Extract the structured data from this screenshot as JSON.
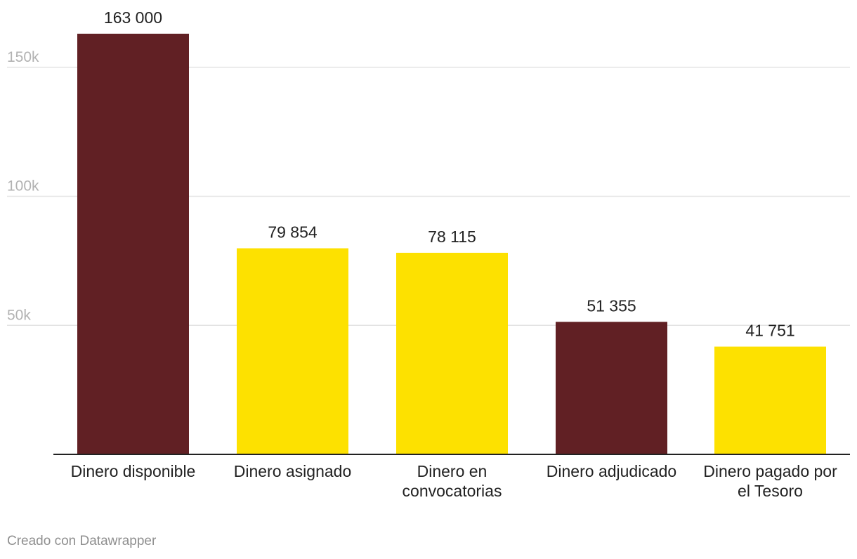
{
  "chart_data": {
    "type": "bar",
    "title": "",
    "xlabel": "",
    "ylabel": "",
    "categories": [
      [
        "Dinero disponible"
      ],
      [
        "Dinero asignado"
      ],
      [
        "Dinero en",
        "convocatorias"
      ],
      [
        "Dinero adjudicado"
      ],
      [
        "Dinero pagado por",
        "el Tesoro"
      ]
    ],
    "values": [
      163000,
      79854,
      78115,
      51355,
      41751
    ],
    "value_labels": [
      "163 000",
      "79 854",
      "78 115",
      "51 355",
      "41 751"
    ],
    "bar_colors": [
      "#612024",
      "#fde100",
      "#fde100",
      "#612024",
      "#fde100"
    ],
    "y_ticks": [
      50000,
      100000,
      150000
    ],
    "y_tick_labels": [
      "50k",
      "100k",
      "150k"
    ],
    "ylim": [
      0,
      163000
    ],
    "grid": true,
    "legend": "none"
  },
  "footer": {
    "credit": "Creado con Datawrapper"
  }
}
